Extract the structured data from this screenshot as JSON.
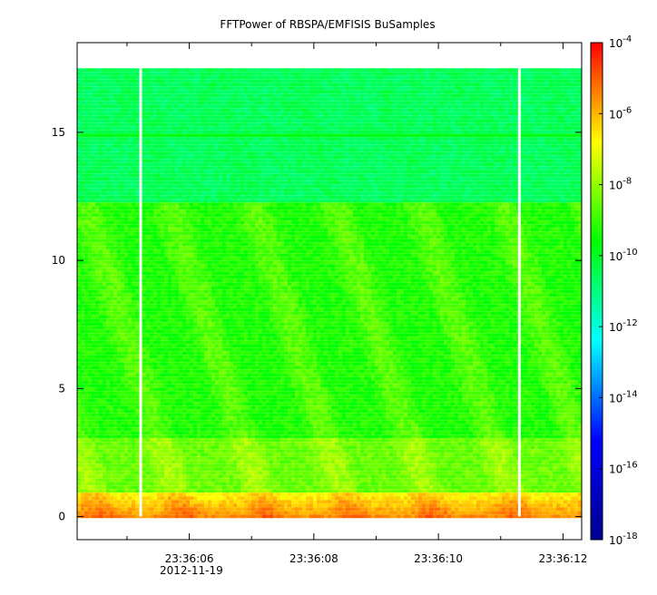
{
  "chart_data": {
    "type": "heatmap",
    "title": "FFTPower of RBSPA/EMFISIS  BuSamples",
    "xlabel": "",
    "ylabel": "",
    "x_ticks": [
      "23:36:06",
      "23:36:08",
      "23:36:10",
      "23:36:12"
    ],
    "x_date_label": "2012-11-19",
    "x_range_seconds": [
      4.2,
      12.3
    ],
    "x_major_tick_seconds": [
      6,
      8,
      10,
      12
    ],
    "x_minor_tick_seconds": [
      5,
      7,
      9,
      11
    ],
    "y_ticks": [
      "0",
      "5",
      "10",
      "15"
    ],
    "y_tick_values": [
      0,
      5,
      10,
      15
    ],
    "ylim": [
      -0.9,
      18.5
    ],
    "data_y_max": 17.5,
    "gaps_seconds": [
      5.22,
      11.3
    ],
    "line_feature_y": 15,
    "colorbar": {
      "scale": "log",
      "range": [
        1e-18,
        0.0001
      ],
      "tick_exponents": [
        "-4",
        "-6",
        "-8",
        "-10",
        "-12",
        "-14",
        "-16",
        "-18"
      ],
      "tick_values": [
        -4,
        -6,
        -8,
        -10,
        -12,
        -14,
        -16,
        -18
      ],
      "colors": [
        "#00008f",
        "#0000ff",
        "#00ffff",
        "#00ff00",
        "#ffff00",
        "#ff0000"
      ]
    }
  }
}
